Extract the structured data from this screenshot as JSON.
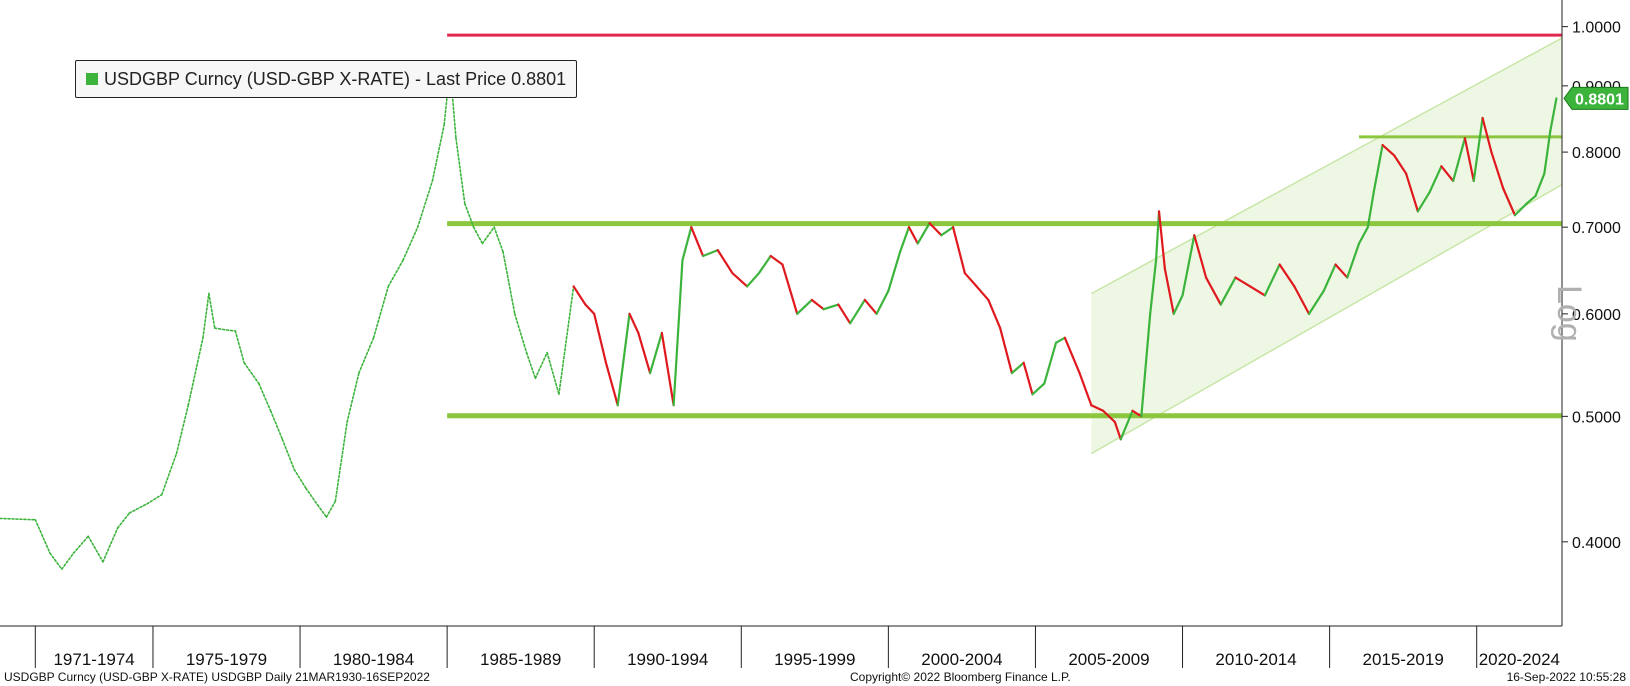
{
  "legend": {
    "text": "USDGBP Curncy (USD-GBP X-RATE) - Last Price 0.8801",
    "color": "#3cb43c"
  },
  "footer": {
    "left": "USDGBP Curncy (USD-GBP X-RATE) USDGBP  Daily 21MAR1930-16SEP2022",
    "center": "Copyright© 2022 Bloomberg Finance L.P.",
    "right": "16-Sep-2022 10:55:28"
  },
  "axis_scale_label": "Log",
  "chart_data": {
    "type": "line",
    "title": "",
    "xlabel": "",
    "ylabel": "",
    "y_scale": "log",
    "ylim": [
      0.345,
      1.03
    ],
    "xlim": [
      1969.8,
      2022.9
    ],
    "grid": false,
    "legend_position": "top-left",
    "y_ticks": [
      {
        "value": 1.0,
        "label": "1.0000"
      },
      {
        "value": 0.9,
        "label": "0.9000"
      },
      {
        "value": 0.8,
        "label": "0.8000"
      },
      {
        "value": 0.7,
        "label": "0.7000"
      },
      {
        "value": 0.6,
        "label": "0.6000"
      },
      {
        "value": 0.5,
        "label": "0.5000"
      },
      {
        "value": 0.4,
        "label": "0.4000"
      }
    ],
    "x_periods": [
      {
        "label": "1971-1974",
        "start": 1971,
        "end": 1975
      },
      {
        "label": "1975-1979",
        "start": 1975,
        "end": 1980
      },
      {
        "label": "1980-1984",
        "start": 1980,
        "end": 1985
      },
      {
        "label": "1985-1989",
        "start": 1985,
        "end": 1990
      },
      {
        "label": "1990-1994",
        "start": 1990,
        "end": 1995
      },
      {
        "label": "1995-1999",
        "start": 1995,
        "end": 2000
      },
      {
        "label": "2000-2004",
        "start": 2000,
        "end": 2005
      },
      {
        "label": "2005-2009",
        "start": 2005,
        "end": 2010
      },
      {
        "label": "2010-2014",
        "start": 2010,
        "end": 2015
      },
      {
        "label": "2015-2019",
        "start": 2015,
        "end": 2020
      },
      {
        "label": "2020-2024",
        "start": 2020,
        "end": 2025
      }
    ],
    "series": [
      {
        "name": "USDGBP Curncy (USD-GBP X-RATE)",
        "color_up": "#3cb43c",
        "color_down": "#e0191e",
        "points": [
          [
            1969.8,
            0.417
          ],
          [
            1971.0,
            0.416
          ],
          [
            1971.5,
            0.392
          ],
          [
            1971.9,
            0.381
          ],
          [
            1972.3,
            0.392
          ],
          [
            1972.8,
            0.404
          ],
          [
            1973.3,
            0.386
          ],
          [
            1973.8,
            0.41
          ],
          [
            1974.2,
            0.421
          ],
          [
            1974.8,
            0.428
          ],
          [
            1975.3,
            0.435
          ],
          [
            1975.8,
            0.468
          ],
          [
            1976.2,
            0.51
          ],
          [
            1976.7,
            0.575
          ],
          [
            1976.9,
            0.622
          ],
          [
            1977.1,
            0.585
          ],
          [
            1977.5,
            0.583
          ],
          [
            1977.8,
            0.582
          ],
          [
            1978.1,
            0.55
          ],
          [
            1978.6,
            0.53
          ],
          [
            1979.0,
            0.505
          ],
          [
            1979.4,
            0.48
          ],
          [
            1979.8,
            0.455
          ],
          [
            1980.2,
            0.44
          ],
          [
            1980.6,
            0.427
          ],
          [
            1980.9,
            0.418
          ],
          [
            1981.2,
            0.43
          ],
          [
            1981.6,
            0.495
          ],
          [
            1982.0,
            0.54
          ],
          [
            1982.5,
            0.575
          ],
          [
            1983.0,
            0.63
          ],
          [
            1983.5,
            0.66
          ],
          [
            1984.0,
            0.7
          ],
          [
            1984.5,
            0.76
          ],
          [
            1984.9,
            0.84
          ],
          [
            1985.1,
            0.93
          ],
          [
            1985.3,
            0.82
          ],
          [
            1985.6,
            0.73
          ],
          [
            1985.9,
            0.7
          ],
          [
            1986.2,
            0.68
          ],
          [
            1986.6,
            0.7
          ],
          [
            1986.9,
            0.67
          ],
          [
            1987.3,
            0.6
          ],
          [
            1987.7,
            0.56
          ],
          [
            1988.0,
            0.535
          ],
          [
            1988.4,
            0.56
          ],
          [
            1988.8,
            0.52
          ],
          [
            1989.3,
            0.63
          ],
          [
            1989.7,
            0.61
          ],
          [
            1990.0,
            0.6
          ],
          [
            1990.4,
            0.55
          ],
          [
            1990.8,
            0.51
          ],
          [
            1991.2,
            0.6
          ],
          [
            1991.5,
            0.58
          ],
          [
            1991.9,
            0.54
          ],
          [
            1992.3,
            0.58
          ],
          [
            1992.7,
            0.51
          ],
          [
            1993.0,
            0.66
          ],
          [
            1993.3,
            0.7
          ],
          [
            1993.7,
            0.665
          ],
          [
            1994.2,
            0.672
          ],
          [
            1994.7,
            0.645
          ],
          [
            1995.2,
            0.63
          ],
          [
            1995.6,
            0.645
          ],
          [
            1996.0,
            0.665
          ],
          [
            1996.4,
            0.655
          ],
          [
            1996.9,
            0.6
          ],
          [
            1997.4,
            0.615
          ],
          [
            1997.8,
            0.605
          ],
          [
            1998.3,
            0.61
          ],
          [
            1998.7,
            0.59
          ],
          [
            1999.2,
            0.615
          ],
          [
            1999.6,
            0.6
          ],
          [
            2000.0,
            0.625
          ],
          [
            2000.4,
            0.67
          ],
          [
            2000.7,
            0.7
          ],
          [
            2001.0,
            0.68
          ],
          [
            2001.4,
            0.705
          ],
          [
            2001.8,
            0.69
          ],
          [
            2002.2,
            0.7
          ],
          [
            2002.6,
            0.645
          ],
          [
            2003.0,
            0.63
          ],
          [
            2003.4,
            0.615
          ],
          [
            2003.8,
            0.585
          ],
          [
            2004.2,
            0.54
          ],
          [
            2004.6,
            0.55
          ],
          [
            2004.9,
            0.52
          ],
          [
            2005.3,
            0.53
          ],
          [
            2005.7,
            0.57
          ],
          [
            2006.0,
            0.575
          ],
          [
            2006.5,
            0.54
          ],
          [
            2006.9,
            0.51
          ],
          [
            2007.3,
            0.505
          ],
          [
            2007.7,
            0.495
          ],
          [
            2007.9,
            0.48
          ],
          [
            2008.3,
            0.505
          ],
          [
            2008.6,
            0.5
          ],
          [
            2008.9,
            0.6
          ],
          [
            2009.1,
            0.66
          ],
          [
            2009.2,
            0.72
          ],
          [
            2009.4,
            0.65
          ],
          [
            2009.7,
            0.6
          ],
          [
            2010.0,
            0.62
          ],
          [
            2010.4,
            0.69
          ],
          [
            2010.8,
            0.64
          ],
          [
            2011.3,
            0.61
          ],
          [
            2011.8,
            0.64
          ],
          [
            2012.3,
            0.63
          ],
          [
            2012.8,
            0.62
          ],
          [
            2013.3,
            0.655
          ],
          [
            2013.8,
            0.63
          ],
          [
            2014.3,
            0.6
          ],
          [
            2014.8,
            0.625
          ],
          [
            2015.2,
            0.655
          ],
          [
            2015.6,
            0.64
          ],
          [
            2016.0,
            0.68
          ],
          [
            2016.3,
            0.7
          ],
          [
            2016.5,
            0.745
          ],
          [
            2016.8,
            0.81
          ],
          [
            2017.2,
            0.795
          ],
          [
            2017.6,
            0.77
          ],
          [
            2018.0,
            0.72
          ],
          [
            2018.4,
            0.745
          ],
          [
            2018.8,
            0.78
          ],
          [
            2019.2,
            0.76
          ],
          [
            2019.6,
            0.82
          ],
          [
            2019.9,
            0.76
          ],
          [
            2020.2,
            0.85
          ],
          [
            2020.5,
            0.8
          ],
          [
            2020.9,
            0.75
          ],
          [
            2021.3,
            0.715
          ],
          [
            2021.7,
            0.73
          ],
          [
            2022.0,
            0.74
          ],
          [
            2022.3,
            0.77
          ],
          [
            2022.5,
            0.83
          ],
          [
            2022.71,
            0.8801
          ]
        ]
      }
    ],
    "reference_lines": [
      {
        "value": 0.985,
        "color": "#e0294e",
        "start_x": 1985.0
      },
      {
        "value": 0.7045,
        "color": "#8cc63f",
        "start_x": 1985.0
      },
      {
        "value": 0.5005,
        "color": "#8cc63f",
        "start_x": 1985.0
      },
      {
        "value": 0.822,
        "color": "#8cc63f",
        "start_x": 2016.0
      }
    ],
    "channel": {
      "fill": "#eef7e3",
      "edge": "#c8e6a8",
      "x_start": 2006.9,
      "x_end": 2022.9,
      "upper_start": 0.622,
      "upper_end": 0.98,
      "lower_start": 0.468,
      "lower_end": 0.755
    },
    "last_price": {
      "value": 0.8801,
      "label": "0.8801",
      "color": "#3cb43c"
    }
  }
}
